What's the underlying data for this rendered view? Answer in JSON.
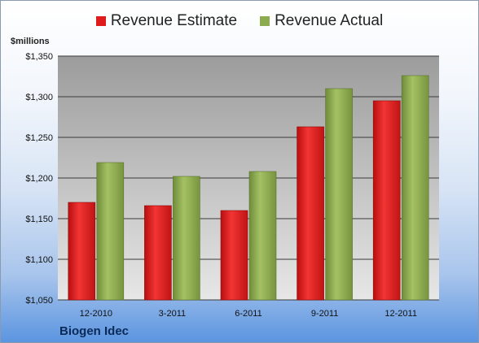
{
  "chart_data": {
    "type": "bar",
    "title": "",
    "ylabel": "$millions",
    "xlabel": "Biogen Idec",
    "categories": [
      "12-2010",
      "3-2011",
      "6-2011",
      "9-2011",
      "12-2011"
    ],
    "series": [
      {
        "name": "Revenue Estimate",
        "values": [
          1170,
          1166,
          1160,
          1263,
          1295
        ],
        "color": "#e01b1b"
      },
      {
        "name": "Revenue Actual",
        "values": [
          1219,
          1202,
          1208,
          1310,
          1326
        ],
        "color": "#8cab4f"
      }
    ],
    "ylim": [
      1050,
      1350
    ],
    "yticks": [
      1050,
      1100,
      1150,
      1200,
      1250,
      1300,
      1350
    ],
    "ytick_labels": [
      "$1,050",
      "$1,100",
      "$1,150",
      "$1,200",
      "$1,250",
      "$1,300",
      "$1,350"
    ],
    "grid": true,
    "legend_position": "top-center"
  }
}
